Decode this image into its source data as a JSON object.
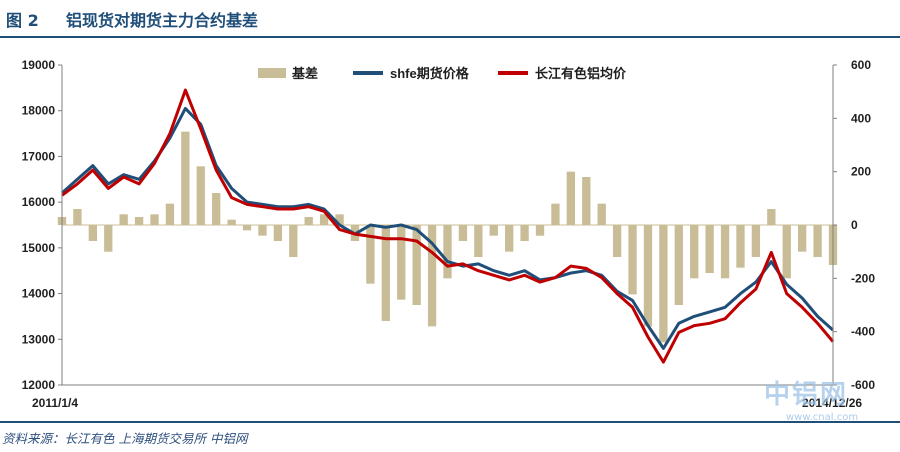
{
  "figure": {
    "number": "图 2",
    "title": "铝现货对期货主力合约基差"
  },
  "source": "资料来源：长江有色   上海期货交易所   中铝网",
  "watermark": {
    "logo": "中铝网",
    "url": "www.cnal.com"
  },
  "colors": {
    "basis": "#c8bd96",
    "shfe": "#1f4e79",
    "cj": "#c00000",
    "rule": "#1f4e79"
  },
  "chart_data": {
    "type": "line+bar",
    "title": "铝现货对期货主力合约基差",
    "x_start_label": "2011/1/4",
    "x_end_label": "2014/12/26",
    "y_left": {
      "min": 12000,
      "max": 19000,
      "ticks": [
        12000,
        13000,
        14000,
        15000,
        16000,
        17000,
        18000,
        19000
      ]
    },
    "y_right": {
      "min": -600,
      "max": 600,
      "ticks": [
        -600,
        -400,
        -200,
        0,
        200,
        400,
        600
      ]
    },
    "legend": {
      "position": "top-center",
      "entries": [
        "基差",
        "shfe期货价格",
        "长江有色铝均价"
      ]
    },
    "x_index": [
      0,
      0.02,
      0.04,
      0.06,
      0.08,
      0.1,
      0.12,
      0.14,
      0.16,
      0.18,
      0.2,
      0.22,
      0.24,
      0.26,
      0.28,
      0.3,
      0.32,
      0.34,
      0.36,
      0.38,
      0.4,
      0.42,
      0.44,
      0.46,
      0.48,
      0.5,
      0.52,
      0.54,
      0.56,
      0.58,
      0.6,
      0.62,
      0.64,
      0.66,
      0.68,
      0.7,
      0.72,
      0.74,
      0.76,
      0.78,
      0.8,
      0.82,
      0.84,
      0.86,
      0.88,
      0.9,
      0.92,
      0.94,
      0.96,
      0.98,
      1.0
    ],
    "series": [
      {
        "name": "shfe期货价格",
        "axis": "left",
        "values": [
          16200,
          16500,
          16800,
          16400,
          16600,
          16500,
          16900,
          17400,
          18050,
          17700,
          16800,
          16300,
          16000,
          15950,
          15900,
          15900,
          15950,
          15850,
          15500,
          15300,
          15500,
          15450,
          15500,
          15400,
          15100,
          14700,
          14600,
          14650,
          14500,
          14400,
          14500,
          14300,
          14350,
          14450,
          14500,
          14400,
          14050,
          13850,
          13300,
          12800,
          13350,
          13500,
          13600,
          13700,
          14000,
          14250,
          14700,
          14200,
          13900,
          13500,
          13200
        ]
      },
      {
        "name": "长江有色铝均价",
        "axis": "left",
        "values": [
          16150,
          16400,
          16700,
          16300,
          16550,
          16400,
          16850,
          17500,
          18450,
          17600,
          16700,
          16100,
          15950,
          15900,
          15850,
          15850,
          15900,
          15800,
          15400,
          15300,
          15250,
          15200,
          15200,
          15150,
          14900,
          14600,
          14650,
          14500,
          14400,
          14300,
          14400,
          14250,
          14350,
          14600,
          14550,
          14350,
          14000,
          13700,
          13050,
          12500,
          13150,
          13300,
          13350,
          13450,
          13800,
          14100,
          14900,
          14000,
          13700,
          13350,
          12950
        ]
      },
      {
        "name": "基差",
        "axis": "right",
        "type": "bar",
        "values": [
          30,
          60,
          -60,
          -100,
          40,
          30,
          40,
          80,
          350,
          220,
          120,
          20,
          -20,
          -40,
          -60,
          -120,
          30,
          40,
          40,
          -60,
          -220,
          -360,
          -280,
          -300,
          -380,
          -200,
          -60,
          -120,
          -40,
          -100,
          -60,
          -40,
          80,
          200,
          180,
          80,
          -120,
          -260,
          -380,
          -440,
          -300,
          -200,
          -180,
          -200,
          -160,
          -120,
          60,
          -200,
          -100,
          -120,
          -150
        ]
      }
    ]
  }
}
